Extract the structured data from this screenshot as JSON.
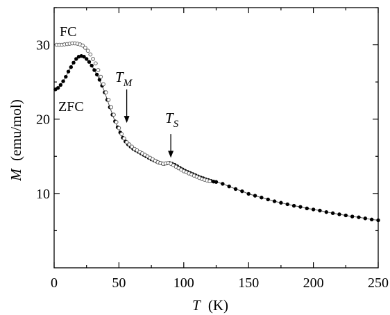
{
  "chart_data": {
    "type": "scatter",
    "xlabel": {
      "var": "T",
      "unit": "(K)"
    },
    "ylabel": {
      "var": "M",
      "unit": "(emu/mol)"
    },
    "xlim": [
      0,
      250
    ],
    "ylim": [
      0,
      35
    ],
    "x_ticks": [
      0,
      50,
      100,
      150,
      200,
      250
    ],
    "y_ticks": [
      10,
      20,
      30
    ],
    "grid": false,
    "legend": "none",
    "series": [
      {
        "name": "FC",
        "marker": "open-circle",
        "points": [
          [
            2,
            30.0
          ],
          [
            4,
            30.0
          ],
          [
            6,
            30.0
          ],
          [
            8,
            30.05
          ],
          [
            10,
            30.1
          ],
          [
            12,
            30.15
          ],
          [
            14,
            30.2
          ],
          [
            16,
            30.2
          ],
          [
            18,
            30.15
          ],
          [
            20,
            30.05
          ],
          [
            22,
            29.9
          ],
          [
            24,
            29.6
          ],
          [
            26,
            29.2
          ],
          [
            28,
            28.7
          ],
          [
            30,
            28.1
          ],
          [
            32,
            27.5
          ],
          [
            34,
            26.6
          ],
          [
            36,
            25.7
          ],
          [
            38,
            24.7
          ],
          [
            40,
            23.6
          ],
          [
            42,
            22.6
          ],
          [
            44,
            21.6
          ],
          [
            46,
            20.6
          ],
          [
            48,
            19.6
          ],
          [
            50,
            18.8
          ],
          [
            52,
            18.0
          ],
          [
            54,
            17.4
          ],
          [
            56,
            16.9
          ],
          [
            58,
            16.6
          ],
          [
            60,
            16.3
          ],
          [
            62,
            16.0
          ],
          [
            64,
            15.8
          ],
          [
            66,
            15.6
          ],
          [
            68,
            15.4
          ],
          [
            70,
            15.2
          ],
          [
            72,
            15.0
          ],
          [
            74,
            14.8
          ],
          [
            76,
            14.6
          ],
          [
            78,
            14.4
          ],
          [
            80,
            14.2
          ],
          [
            82,
            14.1
          ],
          [
            84,
            14.0
          ],
          [
            86,
            14.05
          ],
          [
            88,
            14.1
          ],
          [
            90,
            14.0
          ],
          [
            92,
            13.8
          ],
          [
            94,
            13.6
          ],
          [
            96,
            13.4
          ],
          [
            98,
            13.2
          ],
          [
            100,
            13.0
          ],
          [
            102,
            12.85
          ],
          [
            104,
            12.7
          ],
          [
            106,
            12.55
          ],
          [
            108,
            12.4
          ],
          [
            110,
            12.25
          ],
          [
            112,
            12.1
          ],
          [
            114,
            11.95
          ],
          [
            116,
            11.85
          ],
          [
            118,
            11.75
          ],
          [
            120,
            11.65
          ]
        ]
      },
      {
        "name": "ZFC",
        "marker": "filled-circle",
        "points": [
          [
            1,
            24.0
          ],
          [
            3,
            24.2
          ],
          [
            5,
            24.6
          ],
          [
            7,
            25.1
          ],
          [
            9,
            25.7
          ],
          [
            11,
            26.4
          ],
          [
            13,
            27.0
          ],
          [
            15,
            27.6
          ],
          [
            17,
            28.1
          ],
          [
            19,
            28.4
          ],
          [
            21,
            28.5
          ],
          [
            23,
            28.4
          ],
          [
            25,
            28.1
          ],
          [
            27,
            27.7
          ],
          [
            29,
            27.2
          ],
          [
            31,
            26.6
          ],
          [
            33,
            26.0
          ],
          [
            35,
            25.3
          ],
          [
            37,
            24.5
          ],
          [
            39,
            23.6
          ],
          [
            41,
            22.6
          ],
          [
            43,
            21.6
          ],
          [
            45,
            20.6
          ],
          [
            47,
            19.7
          ],
          [
            49,
            18.9
          ],
          [
            51,
            18.2
          ],
          [
            53,
            17.5
          ],
          [
            55,
            17.0
          ],
          [
            57,
            16.6
          ],
          [
            59,
            16.3
          ],
          [
            61,
            16.0
          ],
          [
            63,
            15.8
          ],
          [
            65,
            15.6
          ],
          [
            67,
            15.4
          ],
          [
            69,
            15.2
          ],
          [
            71,
            15.0
          ],
          [
            73,
            14.8
          ],
          [
            75,
            14.6
          ],
          [
            77,
            14.45
          ],
          [
            79,
            14.3
          ],
          [
            81,
            14.15
          ],
          [
            83,
            14.05
          ],
          [
            85,
            14.0
          ],
          [
            87,
            14.05
          ],
          [
            89,
            14.1
          ],
          [
            91,
            14.0
          ],
          [
            93,
            13.85
          ],
          [
            95,
            13.65
          ],
          [
            97,
            13.45
          ],
          [
            99,
            13.25
          ],
          [
            101,
            13.05
          ],
          [
            103,
            12.9
          ],
          [
            105,
            12.75
          ],
          [
            107,
            12.6
          ],
          [
            109,
            12.45
          ],
          [
            111,
            12.3
          ],
          [
            113,
            12.15
          ],
          [
            115,
            12.05
          ],
          [
            117,
            11.9
          ],
          [
            119,
            11.8
          ],
          [
            121,
            11.7
          ],
          [
            123,
            11.6
          ],
          [
            125,
            11.55
          ],
          [
            130,
            11.3
          ],
          [
            135,
            10.95
          ],
          [
            140,
            10.6
          ],
          [
            145,
            10.3
          ],
          [
            150,
            9.95
          ],
          [
            155,
            9.7
          ],
          [
            160,
            9.45
          ],
          [
            165,
            9.2
          ],
          [
            170,
            8.95
          ],
          [
            175,
            8.75
          ],
          [
            180,
            8.55
          ],
          [
            185,
            8.35
          ],
          [
            190,
            8.2
          ],
          [
            195,
            8.0
          ],
          [
            200,
            7.85
          ],
          [
            205,
            7.7
          ],
          [
            210,
            7.5
          ],
          [
            215,
            7.35
          ],
          [
            220,
            7.2
          ],
          [
            225,
            7.05
          ],
          [
            230,
            6.9
          ],
          [
            235,
            6.8
          ],
          [
            240,
            6.65
          ],
          [
            245,
            6.5
          ],
          [
            250,
            6.4
          ]
        ]
      }
    ],
    "annotations": [
      {
        "id": "fc",
        "text": "FC",
        "target": [
          10,
          30.2
        ]
      },
      {
        "id": "zfc",
        "text": "ZFC",
        "target": [
          5,
          23.5
        ]
      },
      {
        "id": "tm",
        "main": "T",
        "sub": "M",
        "x": 56,
        "y_from": 24.0,
        "y_to": 19.5
      },
      {
        "id": "ts",
        "main": "T",
        "sub": "S",
        "x": 90,
        "y_from": 18.0,
        "y_to": 14.8
      }
    ]
  }
}
